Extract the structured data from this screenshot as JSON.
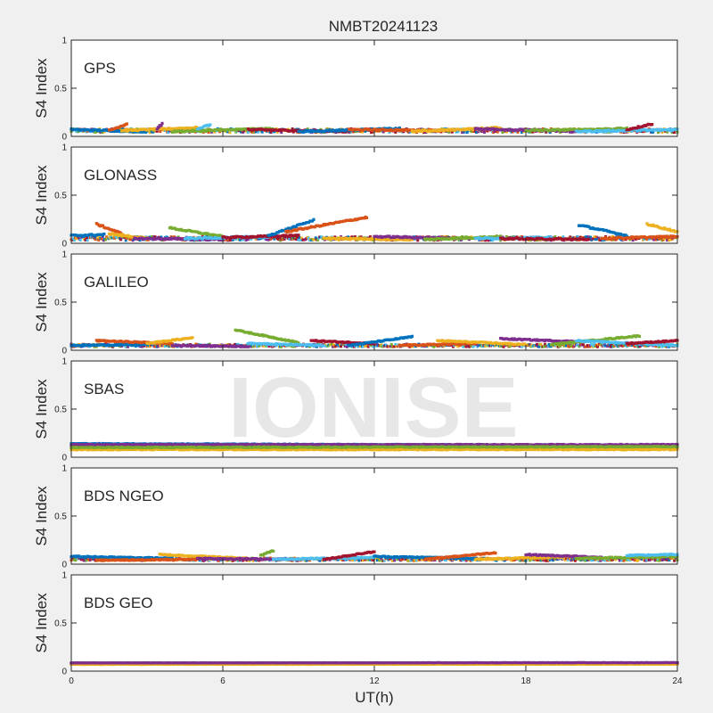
{
  "figure": {
    "title": "NMBT20241123",
    "watermark": "IONISE",
    "xlabel": "UT(h)",
    "ylabel": "S4 Index"
  },
  "colors": {
    "background": "#f0f0f0",
    "axes_bg": "#ffffff",
    "axis": "#262626",
    "palette": [
      "#0072BD",
      "#D95319",
      "#EDB120",
      "#7E2F8E",
      "#77AC30",
      "#4DBEEE",
      "#A2142F"
    ]
  },
  "chart_data": [
    {
      "type": "scatter",
      "panel": "GPS",
      "xlabel": "UT(h)",
      "ylabel": "S4 Index",
      "xlim": [
        0,
        24
      ],
      "ylim": [
        0,
        1
      ],
      "xticks": [
        0,
        6,
        12,
        18,
        24
      ],
      "yticks": [
        0,
        0.5,
        1
      ],
      "baseline": 0.06,
      "noise": 0.02,
      "tracks": [
        {
          "x": [
            0,
            3
          ],
          "y": [
            0.07,
            0.05
          ]
        },
        {
          "x": [
            1.5,
            2.2
          ],
          "y": [
            0.06,
            0.13
          ]
        },
        {
          "x": [
            2,
            5
          ],
          "y": [
            0.06,
            0.09
          ]
        },
        {
          "x": [
            3.4,
            3.6
          ],
          "y": [
            0.08,
            0.13
          ]
        },
        {
          "x": [
            4,
            8
          ],
          "y": [
            0.05,
            0.08
          ]
        },
        {
          "x": [
            5,
            5.5
          ],
          "y": [
            0.08,
            0.12
          ]
        },
        {
          "x": [
            7,
            11
          ],
          "y": [
            0.07,
            0.05
          ]
        },
        {
          "x": [
            9,
            13
          ],
          "y": [
            0.05,
            0.08
          ]
        },
        {
          "x": [
            11,
            15
          ],
          "y": [
            0.07,
            0.06
          ]
        },
        {
          "x": [
            13.5,
            17
          ],
          "y": [
            0.05,
            0.09
          ]
        },
        {
          "x": [
            16,
            20
          ],
          "y": [
            0.08,
            0.05
          ]
        },
        {
          "x": [
            18,
            22
          ],
          "y": [
            0.06,
            0.08
          ]
        },
        {
          "x": [
            20,
            24
          ],
          "y": [
            0.05,
            0.07
          ]
        },
        {
          "x": [
            22,
            23
          ],
          "y": [
            0.07,
            0.13
          ]
        }
      ]
    },
    {
      "type": "scatter",
      "panel": "GLONASS",
      "xlabel": "UT(h)",
      "ylabel": "S4 Index",
      "xlim": [
        0,
        24
      ],
      "ylim": [
        0,
        1
      ],
      "xticks": [
        0,
        6,
        12,
        18,
        24
      ],
      "yticks": [
        0,
        0.5,
        1
      ],
      "baseline": 0.05,
      "noise": 0.02,
      "tracks": [
        {
          "x": [
            0,
            1.3
          ],
          "y": [
            0.08,
            0.09
          ]
        },
        {
          "x": [
            1,
            2
          ],
          "y": [
            0.2,
            0.1
          ]
        },
        {
          "x": [
            1.5,
            3
          ],
          "y": [
            0.1,
            0.05
          ]
        },
        {
          "x": [
            2.5,
            6
          ],
          "y": [
            0.05,
            0.04
          ]
        },
        {
          "x": [
            3.9,
            6
          ],
          "y": [
            0.16,
            0.07
          ]
        },
        {
          "x": [
            4.5,
            8
          ],
          "y": [
            0.05,
            0.07
          ]
        },
        {
          "x": [
            6,
            9
          ],
          "y": [
            0.06,
            0.08
          ]
        },
        {
          "x": [
            7.8,
            9.6
          ],
          "y": [
            0.08,
            0.24
          ]
        },
        {
          "x": [
            8.5,
            11.7
          ],
          "y": [
            0.12,
            0.27
          ]
        },
        {
          "x": [
            10,
            13.5
          ],
          "y": [
            0.05,
            0.04
          ]
        },
        {
          "x": [
            12,
            15.5
          ],
          "y": [
            0.07,
            0.05
          ]
        },
        {
          "x": [
            14,
            17
          ],
          "y": [
            0.04,
            0.07
          ]
        },
        {
          "x": [
            16,
            19
          ],
          "y": [
            0.05,
            0.06
          ]
        },
        {
          "x": [
            17,
            20.5
          ],
          "y": [
            0.05,
            0.04
          ]
        },
        {
          "x": [
            20.1,
            22
          ],
          "y": [
            0.19,
            0.08
          ]
        },
        {
          "x": [
            21,
            24
          ],
          "y": [
            0.05,
            0.07
          ]
        },
        {
          "x": [
            22.8,
            24
          ],
          "y": [
            0.2,
            0.12
          ]
        }
      ]
    },
    {
      "type": "scatter",
      "panel": "GALILEO",
      "xlabel": "UT(h)",
      "ylabel": "S4 Index",
      "xlim": [
        0,
        24
      ],
      "ylim": [
        0,
        1
      ],
      "xticks": [
        0,
        6,
        12,
        18,
        24
      ],
      "yticks": [
        0,
        0.5,
        1
      ],
      "baseline": 0.05,
      "noise": 0.015,
      "tracks": [
        {
          "x": [
            0,
            3
          ],
          "y": [
            0.05,
            0.06
          ]
        },
        {
          "x": [
            1,
            4
          ],
          "y": [
            0.1,
            0.07
          ]
        },
        {
          "x": [
            3,
            4.8
          ],
          "y": [
            0.07,
            0.13
          ]
        },
        {
          "x": [
            4,
            7
          ],
          "y": [
            0.05,
            0.04
          ]
        },
        {
          "x": [
            6.5,
            9
          ],
          "y": [
            0.21,
            0.08
          ]
        },
        {
          "x": [
            7,
            10
          ],
          "y": [
            0.07,
            0.05
          ]
        },
        {
          "x": [
            9.5,
            12
          ],
          "y": [
            0.1,
            0.07
          ]
        },
        {
          "x": [
            11,
            13.5
          ],
          "y": [
            0.05,
            0.14
          ]
        },
        {
          "x": [
            13,
            16
          ],
          "y": [
            0.05,
            0.07
          ]
        },
        {
          "x": [
            14.5,
            18
          ],
          "y": [
            0.1,
            0.06
          ]
        },
        {
          "x": [
            17,
            20
          ],
          "y": [
            0.12,
            0.09
          ]
        },
        {
          "x": [
            19,
            22.5
          ],
          "y": [
            0.06,
            0.15
          ]
        },
        {
          "x": [
            20,
            24
          ],
          "y": [
            0.1,
            0.05
          ]
        },
        {
          "x": [
            22,
            24
          ],
          "y": [
            0.07,
            0.1
          ]
        }
      ]
    },
    {
      "type": "scatter",
      "panel": "SBAS",
      "xlabel": "UT(h)",
      "ylabel": "S4 Index",
      "xlim": [
        0,
        24
      ],
      "ylim": [
        0,
        1
      ],
      "xticks": [
        0,
        6,
        12,
        18,
        24
      ],
      "yticks": [
        0,
        0.5,
        1
      ],
      "baseline": 0.12,
      "noise": 0.012,
      "tracks": [
        {
          "x": [
            0,
            24
          ],
          "y": [
            0.14,
            0.12
          ]
        },
        {
          "x": [
            0,
            24
          ],
          "y": [
            0.11,
            0.1
          ]
        },
        {
          "x": [
            0,
            24
          ],
          "y": [
            0.08,
            0.08
          ]
        },
        {
          "x": [
            0,
            24
          ],
          "y": [
            0.13,
            0.13
          ]
        },
        {
          "x": [
            0,
            24
          ],
          "y": [
            0.1,
            0.11
          ]
        }
      ]
    },
    {
      "type": "scatter",
      "panel": "BDS NGEO",
      "xlabel": "UT(h)",
      "ylabel": "S4 Index",
      "xlim": [
        0,
        24
      ],
      "ylim": [
        0,
        1
      ],
      "xticks": [
        0,
        6,
        12,
        18,
        24
      ],
      "yticks": [
        0,
        0.5,
        1
      ],
      "baseline": 0.05,
      "noise": 0.015,
      "tracks": [
        {
          "x": [
            0,
            4
          ],
          "y": [
            0.08,
            0.06
          ]
        },
        {
          "x": [
            1,
            5
          ],
          "y": [
            0.04,
            0.05
          ]
        },
        {
          "x": [
            3.5,
            7
          ],
          "y": [
            0.1,
            0.06
          ]
        },
        {
          "x": [
            5,
            9
          ],
          "y": [
            0.06,
            0.05
          ]
        },
        {
          "x": [
            7.5,
            8
          ],
          "y": [
            0.09,
            0.14
          ]
        },
        {
          "x": [
            8,
            12
          ],
          "y": [
            0.05,
            0.07
          ]
        },
        {
          "x": [
            10,
            12
          ],
          "y": [
            0.05,
            0.13
          ]
        },
        {
          "x": [
            12,
            16
          ],
          "y": [
            0.08,
            0.06
          ]
        },
        {
          "x": [
            14,
            16.8
          ],
          "y": [
            0.05,
            0.12
          ]
        },
        {
          "x": [
            16,
            20
          ],
          "y": [
            0.05,
            0.08
          ]
        },
        {
          "x": [
            18,
            21
          ],
          "y": [
            0.1,
            0.07
          ]
        },
        {
          "x": [
            20,
            24
          ],
          "y": [
            0.06,
            0.08
          ]
        },
        {
          "x": [
            22,
            24
          ],
          "y": [
            0.09,
            0.1
          ]
        }
      ]
    },
    {
      "type": "scatter",
      "panel": "BDS GEO",
      "xlabel": "UT(h)",
      "ylabel": "S4 Index",
      "xlim": [
        0,
        24
      ],
      "ylim": [
        0,
        1
      ],
      "xticks": [
        0,
        6,
        12,
        18,
        24
      ],
      "yticks": [
        0,
        0.5,
        1
      ],
      "baseline": 0.08,
      "noise": 0.004,
      "tracks": [
        {
          "x": [
            0,
            24
          ],
          "y": [
            0.08,
            0.085
          ]
        },
        {
          "x": [
            0,
            24
          ],
          "y": [
            0.075,
            0.078
          ]
        },
        {
          "x": [
            0,
            24
          ],
          "y": [
            0.07,
            0.072
          ]
        },
        {
          "x": [
            0,
            24
          ],
          "y": [
            0.085,
            0.088
          ]
        }
      ]
    }
  ]
}
